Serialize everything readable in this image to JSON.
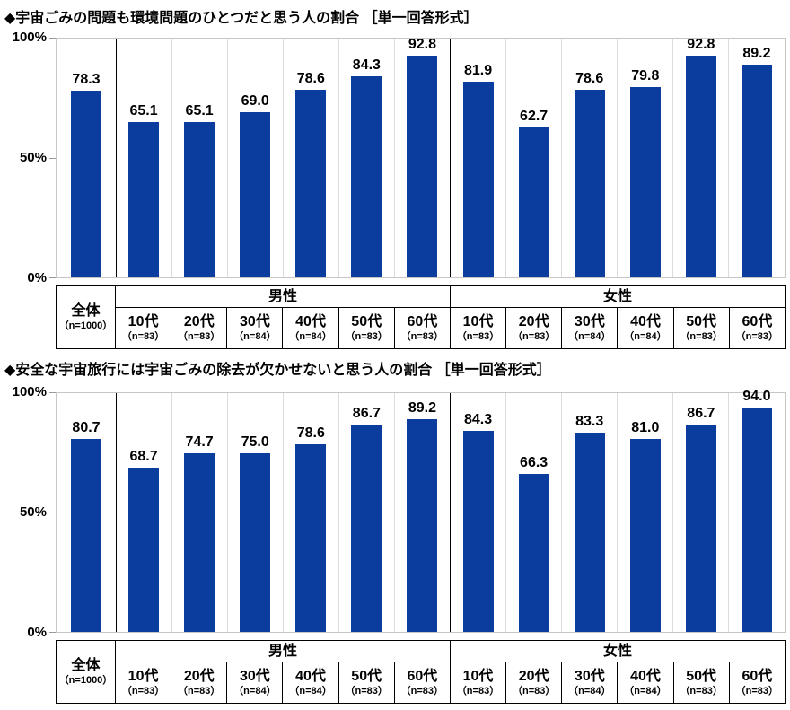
{
  "colors": {
    "bar": "#0a3d9e",
    "plot_border": "#c6c6c6",
    "column_line": "#dcdcdc",
    "group_line": "#000000",
    "table_border": "#000000",
    "text": "#000000"
  },
  "chart_data": [
    {
      "type": "bar",
      "title": "◆宇宙ごみの問題も環境問題のひとつだと思う人の割合 ［単一回答形式］",
      "ylim": [
        0,
        100
      ],
      "grid": false,
      "y_ticks": [
        {
          "label": "100%",
          "value": 100
        },
        {
          "label": "50%",
          "value": 50
        },
        {
          "label": "0%",
          "value": 0
        }
      ],
      "overall": {
        "label": "全体",
        "n": "（n=1000）",
        "value": 78.3,
        "display": "78.3"
      },
      "groups": [
        {
          "name": "男性",
          "bars": [
            {
              "label": "10代",
              "n": "（n=83）",
              "value": 65.1,
              "display": "65.1"
            },
            {
              "label": "20代",
              "n": "（n=83）",
              "value": 65.1,
              "display": "65.1"
            },
            {
              "label": "30代",
              "n": "（n=84）",
              "value": 69.0,
              "display": "69.0"
            },
            {
              "label": "40代",
              "n": "（n=84）",
              "value": 78.6,
              "display": "78.6"
            },
            {
              "label": "50代",
              "n": "（n=83）",
              "value": 84.3,
              "display": "84.3"
            },
            {
              "label": "60代",
              "n": "（n=83）",
              "value": 92.8,
              "display": "92.8"
            }
          ]
        },
        {
          "name": "女性",
          "bars": [
            {
              "label": "10代",
              "n": "（n=83）",
              "value": 81.9,
              "display": "81.9"
            },
            {
              "label": "20代",
              "n": "（n=83）",
              "value": 62.7,
              "display": "62.7"
            },
            {
              "label": "30代",
              "n": "（n=84）",
              "value": 78.6,
              "display": "78.6"
            },
            {
              "label": "40代",
              "n": "（n=84）",
              "value": 79.8,
              "display": "79.8"
            },
            {
              "label": "50代",
              "n": "（n=83）",
              "value": 92.8,
              "display": "92.8"
            },
            {
              "label": "60代",
              "n": "（n=83）",
              "value": 89.2,
              "display": "89.2"
            }
          ]
        }
      ]
    },
    {
      "type": "bar",
      "title": "◆安全な宇宙旅行には宇宙ごみの除去が欠かせないと思う人の割合 ［単一回答形式］",
      "ylim": [
        0,
        100
      ],
      "grid": false,
      "y_ticks": [
        {
          "label": "100%",
          "value": 100
        },
        {
          "label": "50%",
          "value": 50
        },
        {
          "label": "0%",
          "value": 0
        }
      ],
      "overall": {
        "label": "全体",
        "n": "（n=1000）",
        "value": 80.7,
        "display": "80.7"
      },
      "groups": [
        {
          "name": "男性",
          "bars": [
            {
              "label": "10代",
              "n": "（n=83）",
              "value": 68.7,
              "display": "68.7"
            },
            {
              "label": "20代",
              "n": "（n=83）",
              "value": 74.7,
              "display": "74.7"
            },
            {
              "label": "30代",
              "n": "（n=84）",
              "value": 75.0,
              "display": "75.0"
            },
            {
              "label": "40代",
              "n": "（n=84）",
              "value": 78.6,
              "display": "78.6"
            },
            {
              "label": "50代",
              "n": "（n=83）",
              "value": 86.7,
              "display": "86.7"
            },
            {
              "label": "60代",
              "n": "（n=83）",
              "value": 89.2,
              "display": "89.2"
            }
          ]
        },
        {
          "name": "女性",
          "bars": [
            {
              "label": "10代",
              "n": "（n=83）",
              "value": 84.3,
              "display": "84.3"
            },
            {
              "label": "20代",
              "n": "（n=83）",
              "value": 66.3,
              "display": "66.3"
            },
            {
              "label": "30代",
              "n": "（n=84）",
              "value": 83.3,
              "display": "83.3"
            },
            {
              "label": "40代",
              "n": "（n=84）",
              "value": 81.0,
              "display": "81.0"
            },
            {
              "label": "50代",
              "n": "（n=83）",
              "value": 86.7,
              "display": "86.7"
            },
            {
              "label": "60代",
              "n": "（n=83）",
              "value": 94.0,
              "display": "94.0"
            }
          ]
        }
      ]
    }
  ]
}
